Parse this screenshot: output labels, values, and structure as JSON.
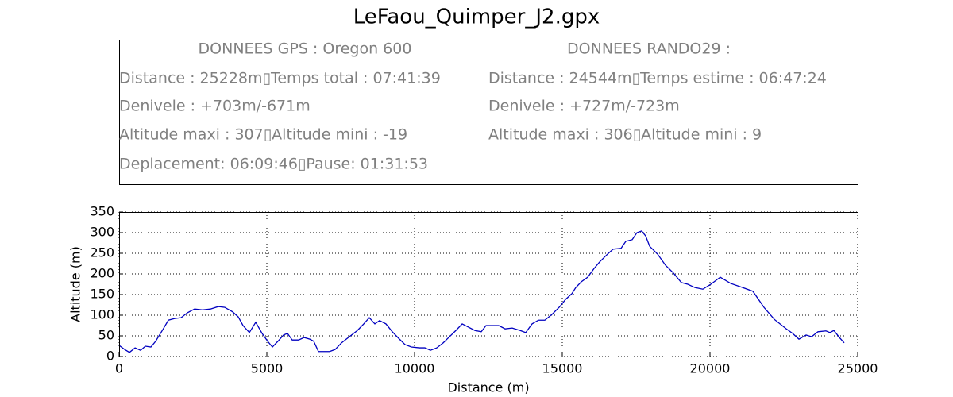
{
  "title": "LeFaou_Quimper_J2.gpx",
  "info_box": {
    "left_header": "DONNEES GPS :  Oregon 600",
    "left_lines": [
      "Distance : 25228m▯Temps total : 07:41:39",
      "Denivele : +703m/-671m",
      "Altitude maxi : 307▯Altitude mini : -19",
      "Deplacement: 06:09:46▯Pause: 01:31:53"
    ],
    "right_header": "DONNEES RANDO29  :",
    "right_lines": [
      "Distance : 24544m▯Temps estime : 06:47:24",
      "Denivele : +727m/-723m",
      "Altitude maxi : 306▯Altitude mini : 9"
    ]
  },
  "chart_data": {
    "type": "line",
    "xlabel": "Distance (m)",
    "ylabel": "Altitude (m)",
    "color": "#0000c0",
    "grid": true,
    "xlim": [
      0,
      25000
    ],
    "xticks": [
      0,
      5000,
      10000,
      15000,
      20000,
      25000
    ],
    "ylim": [
      0,
      350
    ],
    "yticks": [
      0,
      50,
      100,
      150,
      200,
      250,
      300,
      350
    ],
    "x": [
      0,
      188,
      350,
      540,
      726,
      887,
      1075,
      1237,
      1478,
      1667,
      1882,
      2097,
      2312,
      2554,
      2823,
      3091,
      3360,
      3575,
      3844,
      4032,
      4194,
      4409,
      4624,
      4839,
      5027,
      5188,
      5376,
      5565,
      5699,
      5860,
      6075,
      6263,
      6452,
      6586,
      6747,
      6935,
      7124,
      7312,
      7527,
      7796,
      8065,
      8280,
      8468,
      8656,
      8817,
      9032,
      9247,
      9462,
      9677,
      9892,
      10161,
      10349,
      10538,
      10753,
      10968,
      11183,
      11398,
      11613,
      11828,
      12043,
      12258,
      12419,
      12634,
      12849,
      13065,
      13306,
      13575,
      13763,
      13978,
      14194,
      14409,
      14651,
      14919,
      15108,
      15323,
      15457,
      15645,
      15860,
      16075,
      16263,
      16532,
      16720,
      16989,
      17151,
      17366,
      17527,
      17688,
      17823,
      17957,
      18226,
      18495,
      18763,
      19032,
      19247,
      19489,
      19758,
      20027,
      20349,
      20699,
      21102,
      21452,
      21828,
      22177,
      22581,
      22796,
      23011,
      23253,
      23441,
      23656,
      23925,
      24059,
      24194,
      24382,
      24543
    ],
    "values": [
      27,
      17,
      10,
      21,
      15,
      25,
      23,
      37,
      65,
      88,
      92,
      94,
      106,
      115,
      113,
      115,
      121,
      119,
      108,
      96,
      75,
      58,
      83,
      56,
      37,
      23,
      37,
      52,
      56,
      40,
      40,
      46,
      42,
      37,
      12,
      12,
      12,
      17,
      33,
      48,
      63,
      79,
      94,
      79,
      87,
      79,
      60,
      44,
      29,
      23,
      21,
      21,
      15,
      21,
      33,
      48,
      63,
      79,
      71,
      63,
      60,
      75,
      75,
      75,
      67,
      69,
      63,
      58,
      79,
      88,
      88,
      102,
      121,
      138,
      152,
      167,
      181,
      192,
      213,
      229,
      248,
      260,
      262,
      279,
      283,
      300,
      304,
      292,
      267,
      248,
      221,
      202,
      179,
      175,
      167,
      163,
      175,
      192,
      177,
      167,
      158,
      119,
      90,
      67,
      56,
      42,
      52,
      48,
      60,
      62,
      58,
      63,
      46,
      33
    ]
  }
}
